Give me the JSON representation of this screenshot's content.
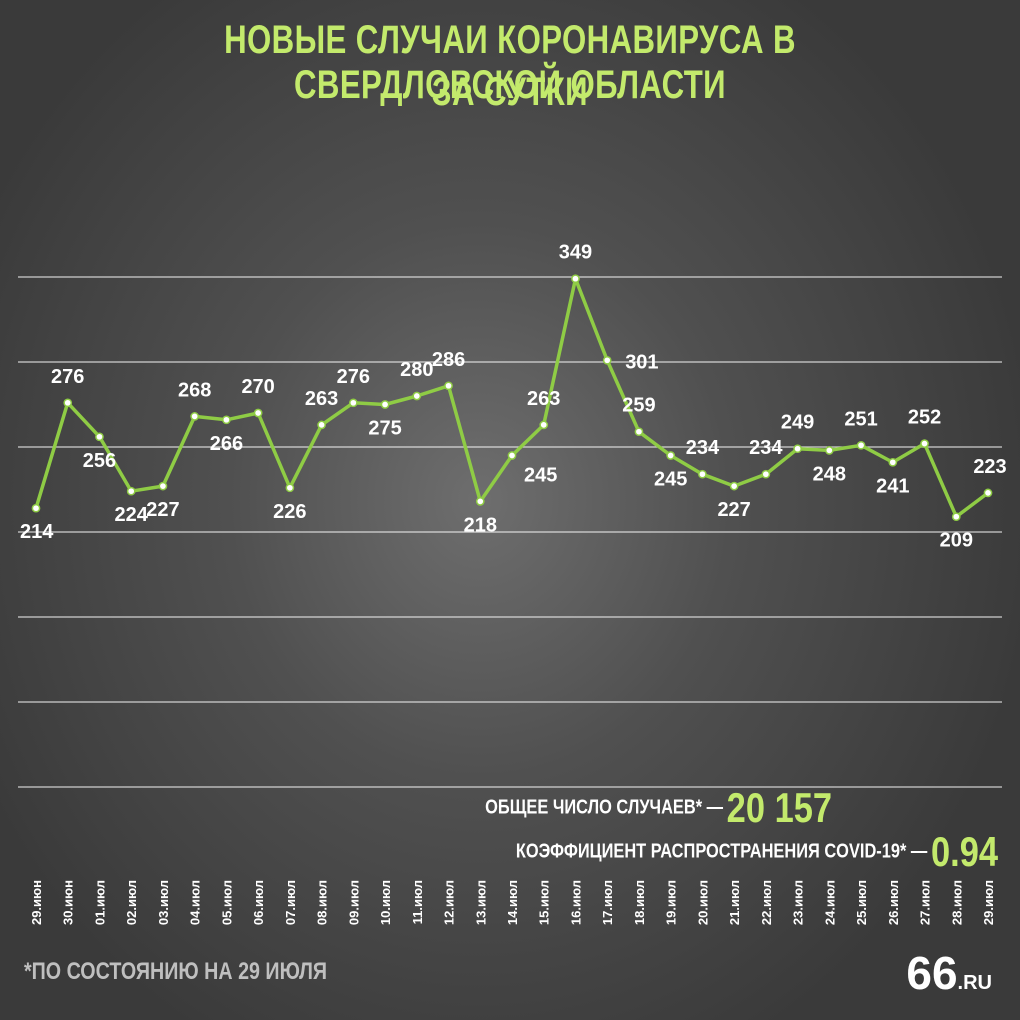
{
  "title_line1": "НОВЫЕ СЛУЧАИ КОРОНАВИРУСА В СВЕРДЛОВСКОЙ ОБЛАСТИ",
  "title_line2": "ЗА СУТКИ",
  "summary": {
    "total_label": "ОБЩЕЕ ЧИСЛО СЛУЧАЕВ* —",
    "total_value": "20 157",
    "coef_label": "КОЭФФИЦИЕНТ РАСПРОСТРАНЕНИЯ COVID-19* —",
    "coef_value": "0.94"
  },
  "footnote": "*ПО СОСТОЯНИЮ НА 29 ИЮЛЯ",
  "logo": {
    "num": "66",
    "suffix": ".RU"
  },
  "colors": {
    "accent": "#c3ea6c",
    "line": "#8fcc45",
    "grid": "#ffffff",
    "text": "#ffffff"
  },
  "chart_data": {
    "type": "line",
    "categories": [
      "29.июн",
      "30.июн",
      "01.июл",
      "02.июл",
      "03.июл",
      "04.июл",
      "05.июл",
      "06.июл",
      "07.июл",
      "08.июл",
      "09.июл",
      "10.июл",
      "11.июл",
      "12.июл",
      "13.июл",
      "14.июл",
      "15.июл",
      "16.июл",
      "17.июл",
      "18.июл",
      "19.июл",
      "20.июл",
      "21.июл",
      "22.июл",
      "23.июл",
      "24.июл",
      "25.июл",
      "26.июл",
      "27.июл",
      "28.июл",
      "29.июл"
    ],
    "series": [
      {
        "values": [
          214,
          276,
          256,
          224,
          227,
          268,
          266,
          270,
          226,
          263,
          276,
          275,
          280,
          286,
          218,
          245,
          263,
          349,
          301,
          259,
          245,
          234,
          227,
          234,
          249,
          248,
          251,
          241,
          252,
          209,
          223
        ]
      }
    ],
    "data_labels": [
      "214",
      "276",
      "256",
      "224",
      "227",
      "268",
      "266",
      "270",
      "226",
      "263",
      "276",
      "275",
      "280",
      "286",
      "218",
      "245",
      "263",
      "349",
      "301",
      "259",
      "245",
      "234",
      "227",
      "234",
      "249",
      "248",
      "251",
      "241",
      "252",
      "209",
      "223"
    ],
    "ylim": [
      0,
      400
    ],
    "grid": true,
    "xlabel": "",
    "ylabel": ""
  }
}
